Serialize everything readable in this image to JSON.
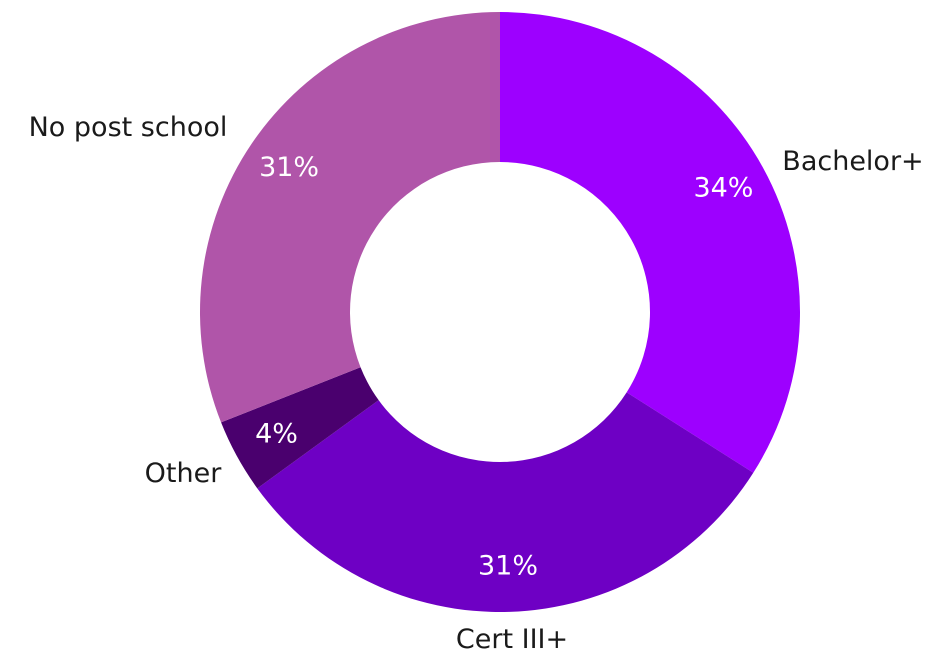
{
  "chart_data": {
    "type": "pie",
    "variant": "donut",
    "title": "",
    "slices": [
      {
        "label": "Bachelor+",
        "value": 34,
        "value_label": "34%",
        "color": "#9D00FF"
      },
      {
        "label": "Cert III+",
        "value": 31,
        "value_label": "31%",
        "color": "#6E00C4"
      },
      {
        "label": "Other",
        "value": 4,
        "value_label": "4%",
        "color": "#4A006E"
      },
      {
        "label": "No post school",
        "value": 31,
        "value_label": "31%",
        "color": "#B055A9"
      }
    ],
    "start_angle": "12 o'clock",
    "direction": "clockwise",
    "legend": "none"
  }
}
